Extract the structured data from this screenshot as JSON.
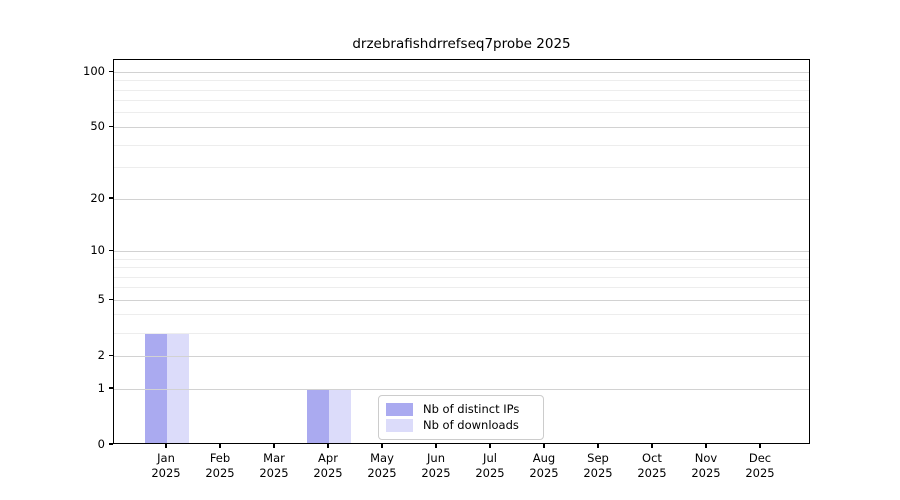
{
  "chart_data": {
    "type": "bar",
    "title": "drzebrafishdrrefseq7probe 2025",
    "categories": [
      "Jan",
      "Feb",
      "Mar",
      "Apr",
      "May",
      "Jun",
      "Jul",
      "Aug",
      "Sep",
      "Oct",
      "Nov",
      "Dec"
    ],
    "category_year": "2025",
    "series": [
      {
        "name": "Nb of distinct IPs",
        "color": "#aaaaf0",
        "values": [
          3,
          0,
          0,
          1,
          0,
          0,
          0,
          0,
          0,
          0,
          0,
          0
        ]
      },
      {
        "name": "Nb of downloads",
        "color": "#dcdcfa",
        "values": [
          3,
          0,
          0,
          1,
          0,
          0,
          0,
          0,
          0,
          0,
          0,
          0
        ]
      }
    ],
    "y_axis": {
      "scale": "log10(1+x)",
      "major_ticks": [
        0,
        1,
        2,
        5,
        10,
        20,
        50,
        100
      ],
      "minor_gridlines": [
        3,
        4,
        6,
        7,
        8,
        9,
        30,
        40,
        60,
        70,
        80,
        90
      ],
      "top_value": 110
    },
    "xlabel": "",
    "ylabel": "",
    "grid": true,
    "legend": {
      "position": "lower-center-inside",
      "entries": [
        "Nb of distinct IPs",
        "Nb of downloads"
      ]
    }
  },
  "colors": {
    "axis": "#000000",
    "grid_major": "#d2d2d2",
    "grid_minor": "#ededed",
    "legend_border": "#cccccc",
    "background": "#ffffff"
  }
}
